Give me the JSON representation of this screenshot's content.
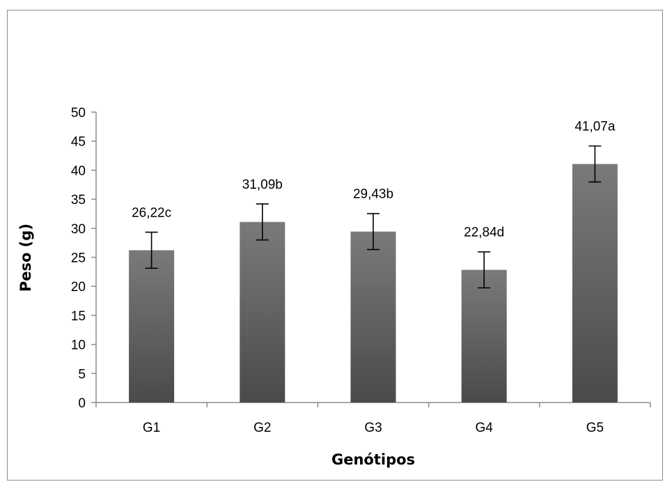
{
  "chart_data": {
    "type": "bar",
    "title": "",
    "xlabel": "Genótipos",
    "ylabel": "Peso (g)",
    "ylim": [
      0,
      50
    ],
    "yticks": [
      0,
      5,
      10,
      15,
      20,
      25,
      30,
      35,
      40,
      45,
      50
    ],
    "categories": [
      "G1",
      "G2",
      "G3",
      "G4",
      "G5"
    ],
    "values": [
      26.22,
      31.09,
      29.43,
      22.84,
      41.07
    ],
    "error": [
      3.1,
      3.1,
      3.1,
      3.1,
      3.1
    ],
    "data_labels": [
      "26,22c",
      "31,09b",
      "29,43b",
      "22,84d",
      "41,07a"
    ],
    "grid": false,
    "legend": "none",
    "bar_color_top": "#7a7a7a",
    "bar_color_bottom": "#4a4a4a"
  }
}
